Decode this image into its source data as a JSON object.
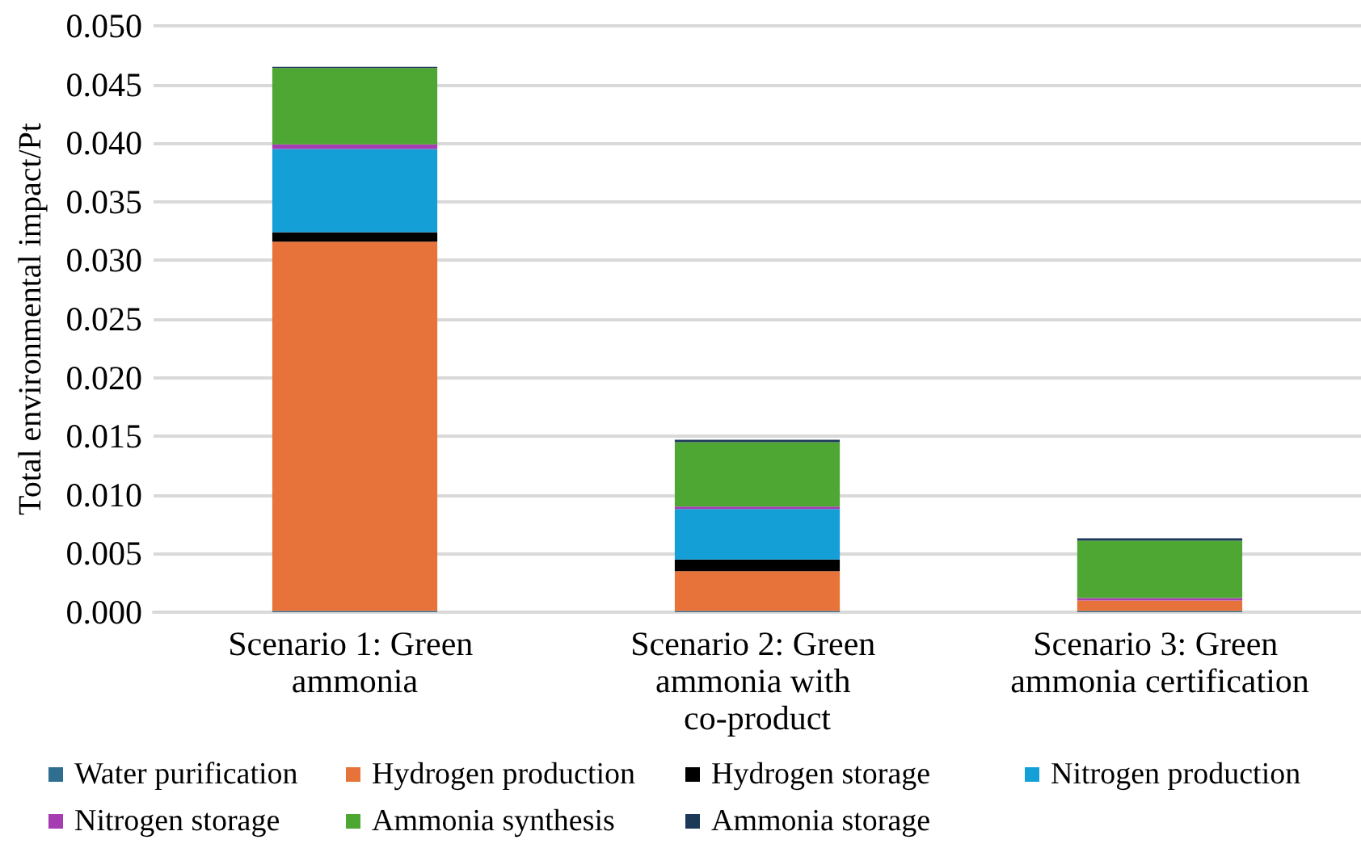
{
  "chart_data": {
    "type": "bar",
    "stacked": true,
    "ylabel": "Total environmental impact/Pt",
    "categories": [
      "Scenario 1: Green ammonia",
      "Scenario 2: Green ammonia with co-product",
      "Scenario 3: Green ammonia certification"
    ],
    "series": [
      {
        "name": "Water purification",
        "color": "#2f6e8f",
        "values": [
          0.0001,
          0.0001,
          0.0001
        ]
      },
      {
        "name": "Hydrogen production",
        "color": "#e8733a",
        "values": [
          0.0315,
          0.0034,
          0.0009
        ]
      },
      {
        "name": "Hydrogen storage",
        "color": "#000000",
        "values": [
          0.0008,
          0.001,
          null
        ]
      },
      {
        "name": "Nitrogen production",
        "color": "#149fd6",
        "values": [
          0.0071,
          0.0043,
          null
        ]
      },
      {
        "name": "Nitrogen storage",
        "color": "#a63cb2",
        "values": [
          0.0004,
          0.0002,
          0.0002
        ]
      },
      {
        "name": "Ammonia synthesis",
        "color": "#4fa733",
        "values": [
          0.0065,
          0.0055,
          0.0049
        ]
      },
      {
        "name": "Ammonia storage",
        "color": "#1c3a57",
        "values": [
          0.0001,
          0.0002,
          0.0002
        ]
      }
    ],
    "ylim": [
      0,
      0.05
    ],
    "yticks": [
      {
        "value": 0,
        "label": "0.000"
      },
      {
        "value": 0.005,
        "label": "0.005"
      },
      {
        "value": 0.01,
        "label": "0.010"
      },
      {
        "value": 0.015,
        "label": "0.015"
      },
      {
        "value": 0.02,
        "label": "0.020"
      },
      {
        "value": 0.025,
        "label": "0.025"
      },
      {
        "value": 0.03,
        "label": "0.030"
      },
      {
        "value": 0.035,
        "label": "0.035"
      },
      {
        "value": 0.04,
        "label": "0.040"
      },
      {
        "value": 0.045,
        "label": "0.045"
      },
      {
        "value": 0.05,
        "label": "0.050"
      }
    ],
    "grid": "y",
    "legend": "bottom"
  }
}
